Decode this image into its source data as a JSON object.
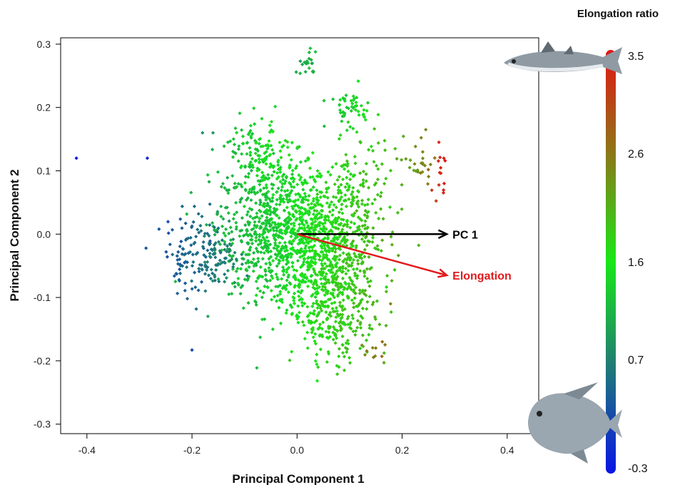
{
  "chart_data": {
    "type": "scatter",
    "title": "",
    "xlabel": "Principal Component 1",
    "ylabel": "Principal Component 2",
    "xlim": [
      -0.45,
      0.46
    ],
    "ylim": [
      -0.315,
      0.31
    ],
    "x_ticks": [
      "-0.4",
      "-0.2",
      "0.0",
      "0.2",
      "0.4"
    ],
    "y_ticks": [
      "-0.3",
      "-0.2",
      "-0.1",
      "0.0",
      "0.1",
      "0.2",
      "0.3"
    ],
    "x_tick_values": [
      -0.4,
      -0.2,
      0.0,
      0.2,
      0.4
    ],
    "y_tick_values": [
      -0.3,
      -0.2,
      -0.1,
      0.0,
      0.1,
      0.2,
      0.3
    ],
    "grid": false,
    "color_legend": {
      "title": "Elongation ratio",
      "labels": [
        "3.5",
        "2.6",
        "1.6",
        "0.7",
        "-0.3"
      ],
      "values": [
        3.5,
        2.6,
        1.6,
        0.7,
        -0.3
      ],
      "range": [
        -0.3,
        3.5
      ],
      "colors": [
        "#0a14e6",
        "#21826e",
        "#18e818",
        "#8a7a18",
        "#e41414"
      ],
      "placement": "right",
      "top_image": "elongated-fish",
      "bottom_image": "deep-bodied-fish"
    },
    "arrows": [
      {
        "label": "PC 1",
        "from": [
          0.0,
          0.0
        ],
        "to": [
          0.285,
          0.0
        ],
        "color": "#000000"
      },
      {
        "label": "Elongation",
        "from": [
          0.0,
          0.0
        ],
        "to": [
          0.285,
          -0.065
        ],
        "color": "#e31a1c"
      }
    ],
    "clusters": [
      {
        "cx": -0.045,
        "cy": 0.01,
        "sx": 0.055,
        "sy": 0.055,
        "n": 700,
        "e0": 1.1,
        "e1": 1.6
      },
      {
        "cx": 0.05,
        "cy": -0.02,
        "sx": 0.05,
        "sy": 0.05,
        "n": 600,
        "e0": 1.4,
        "e1": 2.0
      },
      {
        "cx": 0.07,
        "cy": -0.12,
        "sx": 0.04,
        "sy": 0.04,
        "n": 320,
        "e0": 1.6,
        "e1": 2.0
      },
      {
        "cx": -0.18,
        "cy": -0.03,
        "sx": 0.035,
        "sy": 0.03,
        "n": 170,
        "e0": 0.3,
        "e1": 0.8
      },
      {
        "cx": -0.07,
        "cy": 0.12,
        "sx": 0.035,
        "sy": 0.03,
        "n": 140,
        "e0": 1.2,
        "e1": 1.7
      },
      {
        "cx": 0.12,
        "cy": 0.06,
        "sx": 0.035,
        "sy": 0.045,
        "n": 140,
        "e0": 1.7,
        "e1": 2.0
      },
      {
        "cx": 0.02,
        "cy": 0.27,
        "sx": 0.012,
        "sy": 0.01,
        "n": 20,
        "e0": 1.0,
        "e1": 1.3
      },
      {
        "cx": 0.1,
        "cy": 0.2,
        "sx": 0.02,
        "sy": 0.015,
        "n": 50,
        "e0": 1.2,
        "e1": 1.6
      },
      {
        "cx": 0.235,
        "cy": 0.11,
        "sx": 0.012,
        "sy": 0.02,
        "n": 25,
        "e0": 2.2,
        "e1": 2.6
      },
      {
        "cx": 0.27,
        "cy": 0.09,
        "sx": 0.008,
        "sy": 0.025,
        "n": 12,
        "e0": 3.1,
        "e1": 3.5
      },
      {
        "cx": 0.14,
        "cy": -0.19,
        "sx": 0.015,
        "sy": 0.012,
        "n": 10,
        "e0": 2.3,
        "e1": 2.7
      }
    ],
    "points": [
      {
        "x": -0.42,
        "y": 0.12,
        "e": -0.25
      },
      {
        "x": -0.285,
        "y": 0.12,
        "e": -0.15
      },
      {
        "x": -0.2,
        "y": -0.183,
        "e": 0.15
      },
      {
        "x": 0.178,
        "y": -0.11,
        "e": 2.5
      },
      {
        "x": 0.27,
        "y": 0.145,
        "e": 3.3
      },
      {
        "x": 0.28,
        "y": 0.08,
        "e": 3.4
      },
      {
        "x": 0.245,
        "y": 0.165,
        "e": 2.4
      },
      {
        "x": -0.18,
        "y": 0.16,
        "e": 0.8
      },
      {
        "x": -0.16,
        "y": 0.16,
        "e": 0.9
      },
      {
        "x": 0.09,
        "y": -0.215,
        "e": 1.9
      },
      {
        "x": 0.04,
        "y": -0.21,
        "e": 1.8
      }
    ]
  }
}
